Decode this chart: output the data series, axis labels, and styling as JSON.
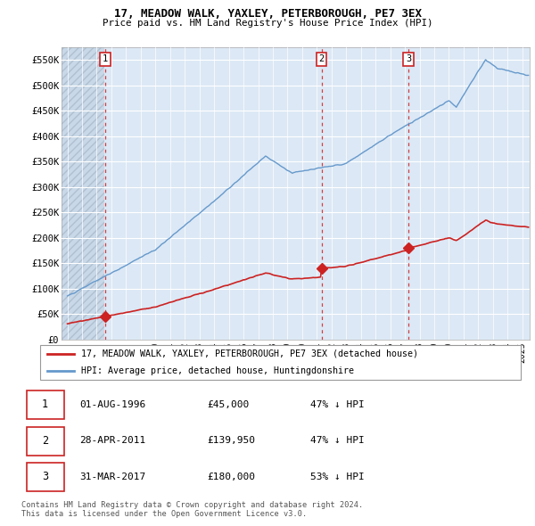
{
  "title1": "17, MEADOW WALK, YAXLEY, PETERBOROUGH, PE7 3EX",
  "title2": "Price paid vs. HM Land Registry's House Price Index (HPI)",
  "background_color": "#ffffff",
  "plot_bg_color": "#dce8f5",
  "hatch_region_end": 1996.5,
  "grid_color": "#ffffff",
  "sale_dates_decimal": [
    1996.583,
    2011.328,
    2017.25
  ],
  "sale_prices": [
    45000,
    139950,
    180000
  ],
  "sale_labels": [
    "1",
    "2",
    "3"
  ],
  "legend_red": "17, MEADOW WALK, YAXLEY, PETERBOROUGH, PE7 3EX (detached house)",
  "legend_blue": "HPI: Average price, detached house, Huntingdonshire",
  "table_rows": [
    [
      "1",
      "01-AUG-1996",
      "£45,000",
      "47% ↓ HPI"
    ],
    [
      "2",
      "28-APR-2011",
      "£139,950",
      "47% ↓ HPI"
    ],
    [
      "3",
      "31-MAR-2017",
      "£180,000",
      "53% ↓ HPI"
    ]
  ],
  "footer": "Contains HM Land Registry data © Crown copyright and database right 2024.\nThis data is licensed under the Open Government Licence v3.0.",
  "ylim": [
    0,
    575000
  ],
  "yticks": [
    0,
    50000,
    100000,
    150000,
    200000,
    250000,
    300000,
    350000,
    400000,
    450000,
    500000,
    550000
  ],
  "ytick_labels": [
    "£0",
    "£50K",
    "£100K",
    "£150K",
    "£200K",
    "£250K",
    "£300K",
    "£350K",
    "£400K",
    "£450K",
    "£500K",
    "£550K"
  ],
  "xlim_start": 1993.6,
  "xlim_end": 2025.5,
  "red_line_color": "#cc2222",
  "blue_line_color": "#6699cc",
  "dashed_line_color": "#cc2222",
  "marker_color": "#cc2222"
}
